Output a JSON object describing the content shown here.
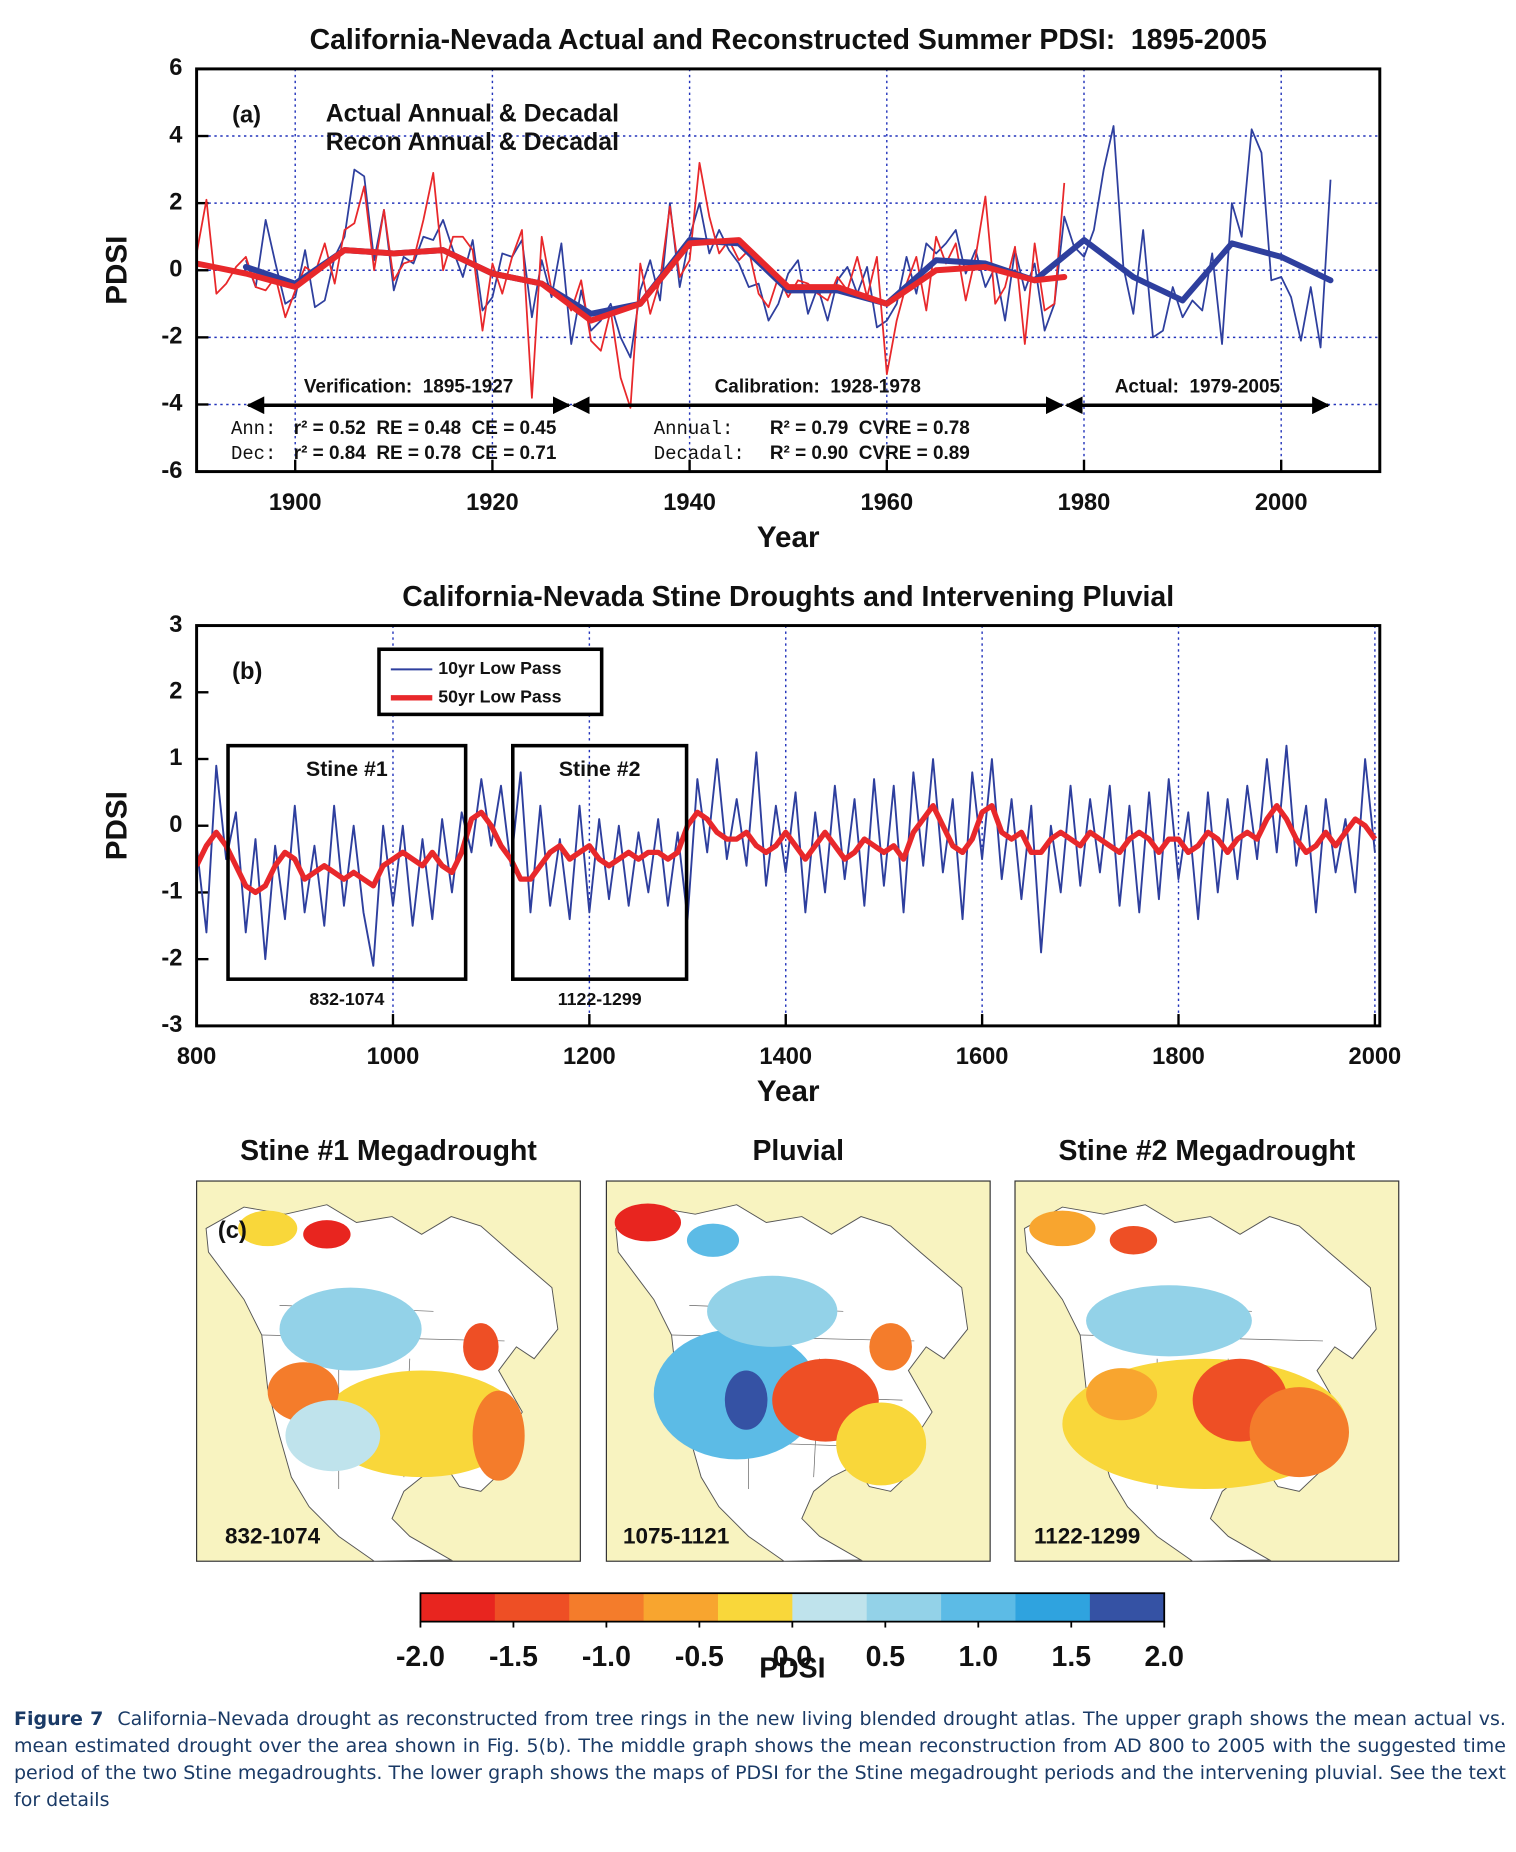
{
  "chart_data": [
    {
      "type": "line",
      "title": "California-Nevada Actual and Reconstructed Summer PDSI:  1895-2005",
      "panel_label": "(a)",
      "x_label": "Year",
      "y_label": "PDSI",
      "xlim": [
        1890,
        2010
      ],
      "ylim": [
        -6,
        6
      ],
      "xticks": [
        1900,
        1920,
        1940,
        1960,
        1980,
        2000
      ],
      "yticks": [
        -6,
        -4,
        -2,
        0,
        2,
        4,
        6
      ],
      "grid": "both",
      "series": [
        {
          "name": "Actual Annual & Decadal",
          "color": "#2e3f9e",
          "x": [
            1895,
            1896,
            1897,
            1898,
            1899,
            1900,
            1901,
            1902,
            1903,
            1904,
            1905,
            1906,
            1907,
            1908,
            1909,
            1910,
            1911,
            1912,
            1913,
            1914,
            1915,
            1916,
            1917,
            1918,
            1919,
            1920,
            1921,
            1922,
            1923,
            1924,
            1925,
            1926,
            1927,
            1928,
            1929,
            1930,
            1931,
            1932,
            1933,
            1934,
            1935,
            1936,
            1937,
            1938,
            1939,
            1940,
            1941,
            1942,
            1943,
            1944,
            1945,
            1946,
            1947,
            1948,
            1949,
            1950,
            1951,
            1952,
            1953,
            1954,
            1955,
            1956,
            1957,
            1958,
            1959,
            1960,
            1961,
            1962,
            1963,
            1964,
            1965,
            1966,
            1967,
            1968,
            1969,
            1970,
            1971,
            1972,
            1973,
            1974,
            1975,
            1976,
            1977,
            1978,
            1979,
            1980,
            1981,
            1982,
            1983,
            1984,
            1985,
            1986,
            1987,
            1988,
            1989,
            1990,
            1991,
            1992,
            1993,
            1994,
            1995,
            1996,
            1997,
            1998,
            1999,
            2000,
            2001,
            2002,
            2003,
            2004,
            2005
          ],
          "values": [
            0.3,
            -0.5,
            1.5,
            0.2,
            -1.0,
            -0.8,
            0.6,
            -1.1,
            -0.9,
            0.4,
            1.0,
            3.0,
            2.8,
            0.3,
            1.8,
            -0.6,
            0.4,
            0.2,
            1.0,
            0.9,
            1.5,
            0.6,
            -0.2,
            0.9,
            -1.2,
            -0.8,
            0.5,
            0.4,
            0.9,
            -1.4,
            0.3,
            -0.8,
            0.8,
            -2.2,
            -0.6,
            -1.8,
            -1.5,
            -1.0,
            -2.0,
            -2.6,
            -0.6,
            0.3,
            -0.9,
            2.0,
            -0.5,
            1.0,
            2.0,
            0.5,
            1.2,
            0.6,
            0.2,
            -0.5,
            -0.4,
            -1.5,
            -1.0,
            -0.1,
            0.3,
            -1.3,
            -0.5,
            -1.5,
            -0.3,
            0.1,
            -0.7,
            0.1,
            -1.7,
            -1.5,
            -1.0,
            0.4,
            -0.7,
            0.8,
            0.5,
            0.8,
            1.2,
            -0.1,
            0.6,
            -0.5,
            0.1,
            -1.5,
            0.6,
            -0.6,
            0.2,
            -1.8,
            -1.0,
            1.6,
            0.7,
            0.4,
            1.2,
            3.0,
            4.3,
            0.1,
            -1.3,
            1.2,
            -2.0,
            -1.8,
            -0.5,
            -1.4,
            -0.9,
            -1.2,
            0.5,
            -2.2,
            2.0,
            1.0,
            4.2,
            3.5,
            -0.3,
            -0.2,
            -0.8,
            -2.1,
            -0.5,
            -2.3,
            2.7
          ],
          "decadal_x": [
            1895,
            1900,
            1905,
            1910,
            1915,
            1920,
            1925,
            1930,
            1935,
            1940,
            1945,
            1950,
            1955,
            1960,
            1965,
            1970,
            1975,
            1980,
            1985,
            1990,
            1995,
            2000,
            2005
          ],
          "decadal": [
            0.1,
            -0.4,
            0.6,
            0.5,
            0.6,
            -0.1,
            -0.4,
            -1.3,
            -1.0,
            0.9,
            0.8,
            -0.6,
            -0.6,
            -1.0,
            0.3,
            0.2,
            -0.3,
            0.9,
            -0.2,
            -0.9,
            0.8,
            0.4,
            -0.3
          ]
        },
        {
          "name": "Recon Annual & Decadal",
          "color": "#e8282b",
          "x": [
            1890,
            1891,
            1892,
            1893,
            1894,
            1895,
            1896,
            1897,
            1898,
            1899,
            1900,
            1901,
            1902,
            1903,
            1904,
            1905,
            1906,
            1907,
            1908,
            1909,
            1910,
            1911,
            1912,
            1913,
            1914,
            1915,
            1916,
            1917,
            1918,
            1919,
            1920,
            1921,
            1922,
            1923,
            1924,
            1925,
            1926,
            1927,
            1928,
            1929,
            1930,
            1931,
            1932,
            1933,
            1934,
            1935,
            1936,
            1937,
            1938,
            1939,
            1940,
            1941,
            1942,
            1943,
            1944,
            1945,
            1946,
            1947,
            1948,
            1949,
            1950,
            1951,
            1952,
            1953,
            1954,
            1955,
            1956,
            1957,
            1958,
            1959,
            1960,
            1961,
            1962,
            1963,
            1964,
            1965,
            1966,
            1967,
            1968,
            1969,
            1970,
            1971,
            1972,
            1973,
            1974,
            1975,
            1976,
            1977,
            1978
          ],
          "values": [
            0.5,
            2.1,
            -0.7,
            -0.4,
            0.1,
            0.4,
            -0.5,
            -0.6,
            -0.2,
            -1.4,
            -0.6,
            0.1,
            -0.1,
            0.8,
            -0.4,
            1.2,
            1.4,
            2.5,
            0.0,
            1.8,
            -0.3,
            0.2,
            0.3,
            1.5,
            2.9,
            0.0,
            1.0,
            1.0,
            0.6,
            -1.8,
            0.2,
            -0.7,
            0.4,
            1.2,
            -3.8,
            1.0,
            -0.6,
            -0.7,
            -1.2,
            -0.3,
            -2.1,
            -2.4,
            -1.2,
            -3.2,
            -4.1,
            0.2,
            -1.3,
            -0.3,
            1.9,
            -0.2,
            0.3,
            3.2,
            1.6,
            0.5,
            0.9,
            0.3,
            0.6,
            -0.7,
            -1.1,
            -0.2,
            -0.8,
            -0.3,
            -0.4,
            -0.7,
            -0.9,
            -0.2,
            -0.6,
            0.4,
            -0.8,
            0.4,
            -3.1,
            -1.5,
            -0.4,
            0.4,
            -1.2,
            1.0,
            0.2,
            0.8,
            -0.9,
            0.4,
            2.2,
            -1.0,
            -0.5,
            0.7,
            -2.2,
            0.8,
            -1.2,
            -1.0,
            2.6
          ],
          "decadal_x": [
            1890,
            1895,
            1900,
            1905,
            1910,
            1915,
            1920,
            1925,
            1930,
            1935,
            1940,
            1945,
            1950,
            1955,
            1960,
            1965,
            1970,
            1975,
            1978
          ],
          "decadal": [
            0.2,
            -0.1,
            -0.5,
            0.6,
            0.5,
            0.6,
            -0.1,
            -0.4,
            -1.5,
            -1.0,
            0.8,
            0.9,
            -0.5,
            -0.5,
            -1.0,
            0.0,
            0.1,
            -0.3,
            -0.2
          ]
        }
      ],
      "periods": [
        {
          "label": "Verification:  1895-1927",
          "start": 1895,
          "end": 1928
        },
        {
          "label": "Calibration:  1928-1978",
          "start": 1928,
          "end": 1978
        },
        {
          "label": "Actual:  1979-2005",
          "start": 1978,
          "end": 2005
        }
      ],
      "stats": [
        {
          "label": "Ann:",
          "text": "r² = 0.52  RE = 0.48  CE = 0.45"
        },
        {
          "label": "Dec:",
          "text": "r² = 0.84  RE = 0.78  CE = 0.71"
        },
        {
          "label": "Annual:",
          "text": "R² = 0.79  CVRE = 0.78"
        },
        {
          "label": "Decadal:",
          "text": "R² = 0.90  CVRE = 0.89"
        }
      ]
    },
    {
      "type": "line",
      "title": "California-Nevada Stine Droughts and Intervening Pluvial",
      "panel_label": "(b)",
      "x_label": "Year",
      "y_label": "PDSI",
      "xlim": [
        800,
        2005
      ],
      "ylim": [
        -3,
        3
      ],
      "xticks": [
        800,
        1000,
        1200,
        1400,
        1600,
        1800,
        2000
      ],
      "yticks": [
        -3,
        -2,
        -1,
        0,
        1,
        2,
        3
      ],
      "grid": "x",
      "x": [
        800,
        810,
        820,
        830,
        840,
        850,
        860,
        870,
        880,
        890,
        900,
        910,
        920,
        930,
        940,
        950,
        960,
        970,
        980,
        990,
        1000,
        1010,
        1020,
        1030,
        1040,
        1050,
        1060,
        1070,
        1080,
        1090,
        1100,
        1110,
        1120,
        1130,
        1140,
        1150,
        1160,
        1170,
        1180,
        1190,
        1200,
        1210,
        1220,
        1230,
        1240,
        1250,
        1260,
        1270,
        1280,
        1290,
        1300,
        1310,
        1320,
        1330,
        1340,
        1350,
        1360,
        1370,
        1380,
        1390,
        1400,
        1410,
        1420,
        1430,
        1440,
        1450,
        1460,
        1470,
        1480,
        1490,
        1500,
        1510,
        1520,
        1530,
        1540,
        1550,
        1560,
        1570,
        1580,
        1590,
        1600,
        1610,
        1620,
        1630,
        1640,
        1650,
        1660,
        1670,
        1680,
        1690,
        1700,
        1710,
        1720,
        1730,
        1740,
        1750,
        1760,
        1770,
        1780,
        1790,
        1800,
        1810,
        1820,
        1830,
        1840,
        1850,
        1860,
        1870,
        1880,
        1890,
        1900,
        1910,
        1920,
        1930,
        1940,
        1950,
        1960,
        1970,
        1980,
        1990,
        2000
      ],
      "series": [
        {
          "name": "10yr Low Pass",
          "color": "#2e3f9e",
          "values": [
            -0.3,
            -1.6,
            0.9,
            -0.5,
            0.2,
            -1.6,
            -0.2,
            -2.0,
            -0.3,
            -1.4,
            0.3,
            -1.3,
            -0.3,
            -1.5,
            0.3,
            -1.2,
            0.0,
            -1.3,
            -2.1,
            0.0,
            -1.2,
            0.0,
            -1.5,
            -0.2,
            -1.4,
            0.1,
            -1.0,
            0.2,
            -0.4,
            0.7,
            -0.3,
            0.6,
            -0.6,
            0.8,
            -1.3,
            0.3,
            -1.2,
            -0.2,
            -1.4,
            0.3,
            -1.3,
            0.1,
            -1.1,
            0.0,
            -1.2,
            -0.1,
            -1.0,
            0.1,
            -1.2,
            -0.1,
            -1.4,
            0.7,
            -0.4,
            1.0,
            -0.5,
            0.4,
            -0.6,
            1.1,
            -0.9,
            0.3,
            -0.7,
            0.5,
            -1.3,
            0.2,
            -1.0,
            0.6,
            -0.8,
            0.4,
            -1.2,
            0.7,
            -0.9,
            0.6,
            -1.3,
            0.8,
            -0.6,
            1.0,
            -0.7,
            0.4,
            -1.4,
            0.8,
            -0.5,
            1.0,
            -0.8,
            0.4,
            -1.1,
            0.3,
            -1.9,
            0.0,
            -1.0,
            0.6,
            -0.9,
            0.4,
            -0.7,
            0.6,
            -1.2,
            0.3,
            -1.3,
            0.5,
            -1.1,
            0.7,
            -0.8,
            0.2,
            -1.4,
            0.5,
            -1.0,
            0.4,
            -0.8,
            0.6,
            -0.5,
            1.0,
            -0.4,
            1.2,
            -0.6,
            0.3,
            -1.3,
            0.4,
            -0.7,
            0.1,
            -1.0,
            1.0,
            -0.4
          ]
        },
        {
          "name": "50yr Low Pass",
          "color": "#e8282b",
          "values": [
            -0.6,
            -0.3,
            -0.1,
            -0.3,
            -0.6,
            -0.9,
            -1.0,
            -0.9,
            -0.6,
            -0.4,
            -0.5,
            -0.8,
            -0.7,
            -0.6,
            -0.7,
            -0.8,
            -0.7,
            -0.8,
            -0.9,
            -0.6,
            -0.5,
            -0.4,
            -0.5,
            -0.6,
            -0.4,
            -0.6,
            -0.7,
            -0.4,
            0.1,
            0.2,
            0.0,
            -0.3,
            -0.5,
            -0.8,
            -0.8,
            -0.6,
            -0.4,
            -0.3,
            -0.5,
            -0.4,
            -0.3,
            -0.5,
            -0.6,
            -0.5,
            -0.4,
            -0.5,
            -0.4,
            -0.4,
            -0.5,
            -0.4,
            0.0,
            0.2,
            0.1,
            -0.1,
            -0.2,
            -0.2,
            -0.1,
            -0.3,
            -0.4,
            -0.3,
            -0.1,
            -0.3,
            -0.5,
            -0.3,
            -0.1,
            -0.3,
            -0.5,
            -0.4,
            -0.2,
            -0.3,
            -0.4,
            -0.3,
            -0.5,
            -0.1,
            0.1,
            0.3,
            0.0,
            -0.3,
            -0.4,
            -0.2,
            0.2,
            0.3,
            -0.1,
            -0.2,
            -0.1,
            -0.4,
            -0.4,
            -0.2,
            -0.1,
            -0.2,
            -0.3,
            -0.1,
            -0.2,
            -0.3,
            -0.4,
            -0.2,
            -0.1,
            -0.2,
            -0.4,
            -0.2,
            -0.2,
            -0.4,
            -0.3,
            -0.1,
            -0.2,
            -0.4,
            -0.2,
            -0.1,
            -0.2,
            0.1,
            0.3,
            0.1,
            -0.2,
            -0.4,
            -0.3,
            -0.1,
            -0.3,
            -0.1,
            0.1,
            0.0,
            -0.2
          ]
        }
      ],
      "boxes": [
        {
          "label": "Stine #1",
          "period": "832-1074",
          "start": 832,
          "end": 1074,
          "top": 1.2,
          "bottom": -2.3
        },
        {
          "label": "Stine #2",
          "period": "1122-1299",
          "start": 1122,
          "end": 1299,
          "top": 1.2,
          "bottom": -2.3
        }
      ]
    }
  ],
  "maps": {
    "panel_label": "(c)",
    "panels": [
      {
        "title": "Stine #1 Megadrought",
        "period": "832-1074"
      },
      {
        "title": "Pluvial",
        "period": "1075-1121"
      },
      {
        "title": "Stine #2 Megadrought",
        "period": "1122-1299"
      }
    ]
  },
  "colorbar": {
    "label": "PDSI",
    "lim": [
      -2,
      2
    ],
    "colors": [
      "#e8251f",
      "#ee4f25",
      "#f47c2b",
      "#f8a52f",
      "#f9d73a",
      "#bfe3ec",
      "#93d2e8",
      "#5cbbe6",
      "#2fa3df",
      "#3552a4"
    ],
    "ticks": [
      {
        "value": -2,
        "label": "-2.0"
      },
      {
        "value": -1.5,
        "label": "-1.5"
      },
      {
        "value": -1,
        "label": "-1.0"
      },
      {
        "value": -0.5,
        "label": "-0.5"
      },
      {
        "value": 0,
        "label": "0.0"
      },
      {
        "value": 0.5,
        "label": "0.5"
      },
      {
        "value": 1,
        "label": "1.0"
      },
      {
        "value": 1.5,
        "label": "1.5"
      },
      {
        "value": 2,
        "label": "2.0"
      }
    ]
  },
  "caption": {
    "label": "Figure 7",
    "text": "California–Nevada drought as reconstructed from tree rings in the new living blended drought atlas. The upper graph shows the mean actual vs. mean estimated drought over the area shown in Fig. 5(b). The middle graph shows the mean reconstruction from AD 800 to 2005 with the suggested time period of the two Stine megadroughts. The lower graph shows the maps of PDSI for the Stine megadrought periods and the intervening pluvial. See the text for details"
  }
}
